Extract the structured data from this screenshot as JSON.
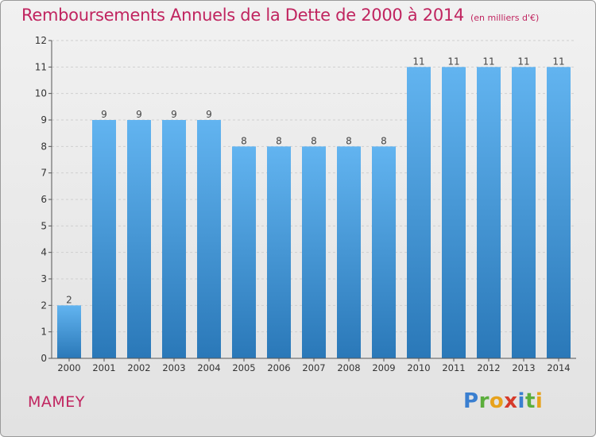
{
  "title": "Remboursements Annuels de la Dette de 2000 à 2014",
  "subtitle": "(en milliers d'€)",
  "commune": "MAMEY",
  "logo": "Proxiti",
  "colors": {
    "title": "#c0245f",
    "bar_light": "#62b4f0",
    "bar_dark": "#2a78b8"
  },
  "chart_data": {
    "type": "bar",
    "categories": [
      "2000",
      "2001",
      "2002",
      "2003",
      "2004",
      "2005",
      "2006",
      "2007",
      "2008",
      "2009",
      "2010",
      "2011",
      "2012",
      "2013",
      "2014"
    ],
    "values": [
      2,
      9,
      9,
      9,
      9,
      8,
      8,
      8,
      8,
      8,
      11,
      11,
      11,
      11,
      11
    ],
    "title": "Remboursements Annuels de la Dette de 2000 à 2014",
    "xlabel": "",
    "ylabel": "",
    "ylim": [
      0,
      12
    ],
    "yticks": [
      0,
      1,
      2,
      3,
      4,
      5,
      6,
      7,
      8,
      9,
      10,
      11,
      12
    ],
    "grid": true,
    "legend": "none"
  }
}
